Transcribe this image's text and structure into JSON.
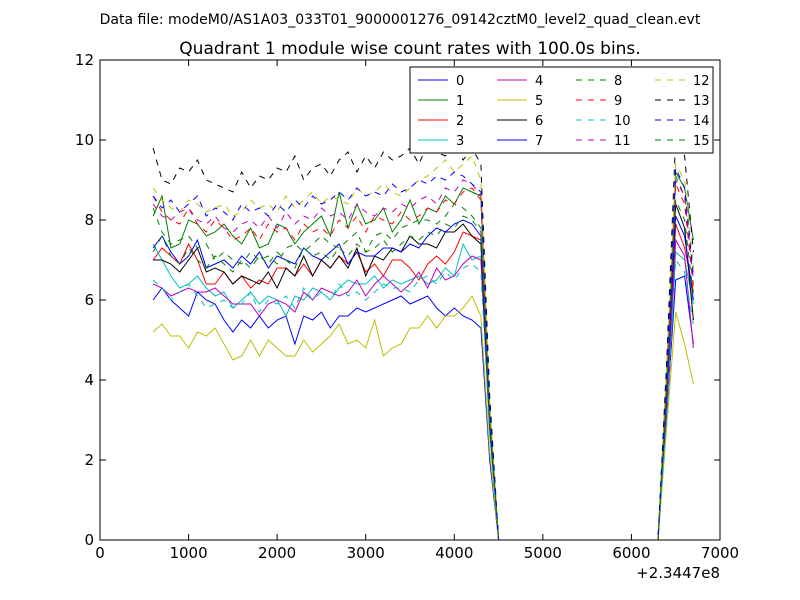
{
  "figure": {
    "suptitle": "Data file: modeM0/AS1A03_033T01_9000001276_09142cztM0_level2_quad_clean.evt"
  },
  "chart_data": {
    "type": "line",
    "title": "Quadrant 1 module wise count rates with 100.0s bins.",
    "xlabel": "",
    "ylabel": "",
    "x_offset_label": "+2.3447e8",
    "xlim": [
      0,
      7000
    ],
    "ylim": [
      0,
      12
    ],
    "xticks": [
      0,
      1000,
      2000,
      3000,
      4000,
      5000,
      6000,
      7000
    ],
    "yticks": [
      0,
      2,
      4,
      6,
      8,
      10,
      12
    ],
    "grid": false,
    "legend": {
      "placement": "top-right",
      "columns": 4
    },
    "x": [
      600,
      700,
      800,
      900,
      1000,
      1100,
      1200,
      1300,
      1400,
      1500,
      1600,
      1700,
      1800,
      1900,
      2000,
      2100,
      2200,
      2300,
      2400,
      2500,
      2600,
      2700,
      2800,
      2900,
      3000,
      3100,
      3200,
      3300,
      3400,
      3500,
      3600,
      3700,
      3800,
      3900,
      4000,
      4100,
      4200,
      4300,
      4400,
      4500,
      4600,
      4700,
      4800,
      4900,
      5000,
      5100,
      5200,
      5300,
      5400,
      5500,
      5600,
      5700,
      5800,
      5900,
      6000,
      6100,
      6200,
      6300,
      6400,
      6500,
      6600,
      6700
    ],
    "series": [
      {
        "name": "0",
        "color": "#0000ff",
        "dash": "solid",
        "values": [
          6.0,
          6.3,
          6.0,
          5.8,
          5.6,
          6.2,
          6.0,
          5.9,
          5.5,
          5.2,
          5.5,
          5.3,
          5.6,
          5.3,
          5.5,
          5.6,
          4.9,
          5.6,
          5.5,
          5.7,
          5.3,
          5.6,
          5.6,
          5.8,
          5.7,
          5.8,
          5.9,
          6.0,
          6.1,
          5.9,
          6.0,
          6.1,
          5.8,
          5.6,
          5.8,
          5.6,
          5.5,
          5.3,
          2.0,
          0,
          0,
          0,
          0,
          0,
          0,
          0,
          0,
          0,
          0,
          0,
          0,
          0,
          0,
          0,
          0,
          0,
          0,
          0,
          3.2,
          6.5,
          6.6,
          4.9
        ]
      },
      {
        "name": "1",
        "color": "#008000",
        "dash": "solid",
        "values": [
          8.1,
          8.6,
          7.3,
          7.4,
          8.0,
          7.9,
          7.6,
          7.7,
          7.9,
          7.6,
          7.4,
          7.8,
          7.3,
          7.4,
          7.9,
          7.8,
          7.4,
          7.7,
          7.9,
          8.1,
          7.6,
          8.7,
          7.8,
          8.4,
          7.9,
          8.0,
          8.3,
          7.7,
          8.0,
          8.5,
          7.9,
          8.3,
          8.2,
          8.6,
          8.4,
          8.8,
          8.7,
          8.6,
          3.3,
          0,
          0,
          0,
          0,
          0,
          0,
          0,
          0,
          0,
          0,
          0,
          0,
          0,
          0,
          0,
          0,
          0,
          0,
          0,
          4.3,
          9.2,
          8.8,
          7.5
        ]
      },
      {
        "name": "2",
        "color": "#ff0000",
        "dash": "solid",
        "values": [
          7.0,
          7.3,
          7.1,
          6.9,
          7.4,
          7.0,
          6.4,
          6.4,
          6.7,
          6.4,
          6.6,
          6.3,
          6.5,
          6.4,
          6.8,
          6.8,
          6.6,
          6.9,
          6.6,
          7.0,
          6.8,
          7.1,
          6.9,
          7.2,
          6.7,
          6.9,
          6.6,
          7.0,
          7.0,
          6.8,
          6.5,
          6.9,
          7.1,
          6.9,
          7.2,
          7.7,
          7.6,
          7.5,
          2.9,
          0,
          0,
          0,
          0,
          0,
          0,
          0,
          0,
          0,
          0,
          0,
          0,
          0,
          0,
          0,
          0,
          0,
          0,
          0,
          3.6,
          7.9,
          7.3,
          6.2
        ]
      },
      {
        "name": "3",
        "color": "#00bfbf",
        "dash": "solid",
        "values": [
          7.4,
          7.0,
          6.6,
          6.3,
          6.4,
          6.6,
          6.3,
          6.1,
          6.2,
          5.8,
          6.0,
          6.2,
          5.9,
          6.1,
          6.0,
          5.6,
          6.1,
          6.0,
          6.3,
          6.2,
          6.0,
          6.3,
          6.5,
          6.4,
          6.4,
          6.6,
          6.3,
          6.5,
          6.4,
          6.5,
          6.6,
          6.4,
          6.5,
          6.8,
          6.6,
          7.4,
          7.0,
          7.1,
          2.7,
          0,
          0,
          0,
          0,
          0,
          0,
          0,
          0,
          0,
          0,
          0,
          0,
          0,
          0,
          0,
          0,
          0,
          0,
          0,
          3.3,
          7.2,
          7.0,
          5.9
        ]
      },
      {
        "name": "4",
        "color": "#bf00bf",
        "dash": "solid",
        "values": [
          6.4,
          6.3,
          6.1,
          6.2,
          6.3,
          6.2,
          6.2,
          6.3,
          6.1,
          5.9,
          5.9,
          5.9,
          5.6,
          5.9,
          6.0,
          5.9,
          5.7,
          6.2,
          6.0,
          6.3,
          6.2,
          6.1,
          6.2,
          6.5,
          6.1,
          6.4,
          6.6,
          6.4,
          6.2,
          6.4,
          6.7,
          6.3,
          6.8,
          6.5,
          6.6,
          6.9,
          7.1,
          7.0,
          2.8,
          0,
          0,
          0,
          0,
          0,
          0,
          0,
          0,
          0,
          0,
          0,
          0,
          0,
          0,
          0,
          0,
          0,
          0,
          0,
          3.4,
          7.5,
          7.1,
          4.8
        ]
      },
      {
        "name": "5",
        "color": "#bfbf00",
        "dash": "solid",
        "values": [
          5.2,
          5.4,
          5.1,
          5.1,
          4.8,
          5.2,
          5.1,
          5.3,
          4.9,
          4.5,
          4.6,
          5.0,
          4.6,
          5.0,
          4.8,
          4.6,
          4.6,
          5.0,
          4.7,
          4.9,
          5.1,
          5.4,
          4.9,
          5.0,
          4.8,
          5.5,
          4.6,
          4.8,
          4.9,
          5.3,
          5.3,
          5.6,
          5.3,
          5.6,
          5.6,
          5.8,
          6.1,
          5.6,
          2.2,
          0,
          0,
          0,
          0,
          0,
          0,
          0,
          0,
          0,
          0,
          0,
          0,
          0,
          0,
          0,
          0,
          0,
          0,
          0,
          2.9,
          5.7,
          4.9,
          3.9
        ]
      },
      {
        "name": "6",
        "color": "#000000",
        "dash": "solid",
        "values": [
          7.0,
          7.0,
          6.9,
          6.7,
          7.0,
          7.3,
          6.7,
          6.8,
          6.7,
          6.4,
          6.6,
          6.5,
          6.4,
          6.7,
          6.3,
          6.8,
          6.6,
          7.1,
          6.6,
          7.0,
          6.8,
          7.1,
          6.8,
          7.3,
          6.6,
          7.1,
          7.0,
          7.3,
          7.2,
          7.6,
          7.4,
          7.4,
          7.3,
          7.7,
          7.7,
          7.9,
          7.6,
          7.4,
          2.9,
          0,
          0,
          0,
          0,
          0,
          0,
          0,
          0,
          0,
          0,
          0,
          0,
          0,
          0,
          0,
          0,
          0,
          0,
          0,
          3.8,
          8.4,
          7.8,
          5.5
        ]
      },
      {
        "name": "7",
        "color": "#0000ff",
        "dash": "solid",
        "values": [
          7.3,
          7.6,
          7.2,
          6.9,
          7.1,
          7.5,
          6.8,
          6.9,
          7.0,
          6.8,
          7.1,
          6.9,
          7.2,
          6.8,
          7.1,
          7.0,
          6.9,
          7.3,
          7.1,
          7.0,
          7.2,
          7.4,
          6.9,
          7.2,
          7.1,
          7.1,
          7.3,
          7.3,
          7.2,
          7.4,
          7.3,
          7.6,
          7.8,
          7.7,
          7.9,
          8.0,
          7.9,
          7.6,
          3.0,
          0,
          0,
          0,
          0,
          0,
          0,
          0,
          0,
          0,
          0,
          0,
          0,
          0,
          0,
          0,
          0,
          0,
          0,
          0,
          3.9,
          8.1,
          7.6,
          6.0
        ]
      },
      {
        "name": "8",
        "color": "#008000",
        "dash": "dashed",
        "values": [
          8.3,
          7.7,
          7.4,
          7.5,
          7.6,
          7.3,
          7.4,
          7.0,
          7.2,
          7.0,
          6.9,
          7.2,
          7.0,
          7.1,
          6.9,
          7.3,
          7.4,
          7.2,
          7.4,
          7.6,
          7.4,
          7.3,
          7.5,
          7.7,
          7.2,
          7.6,
          7.7,
          7.5,
          7.8,
          7.9,
          8.0,
          8.0,
          7.9,
          8.1,
          8.4,
          8.3,
          8.1,
          7.8,
          3.1,
          0,
          0,
          0,
          0,
          0,
          0,
          0,
          0,
          0,
          0,
          0,
          0,
          0,
          0,
          0,
          0,
          0,
          0,
          0,
          4.0,
          9.1,
          8.6,
          6.4
        ]
      },
      {
        "name": "9",
        "color": "#ff0000",
        "dash": "dashed",
        "values": [
          8.6,
          8.2,
          8.0,
          7.9,
          8.3,
          7.9,
          7.7,
          8.0,
          7.8,
          7.5,
          7.6,
          7.8,
          7.5,
          7.9,
          7.7,
          7.8,
          7.5,
          7.9,
          7.7,
          7.8,
          7.6,
          8.0,
          7.8,
          8.1,
          7.7,
          8.1,
          8.0,
          7.9,
          8.2,
          8.0,
          8.1,
          8.3,
          8.2,
          8.5,
          8.4,
          8.7,
          8.8,
          8.5,
          3.2,
          0,
          0,
          0,
          0,
          0,
          0,
          0,
          0,
          0,
          0,
          0,
          0,
          0,
          0,
          0,
          0,
          0,
          0,
          0,
          4.2,
          8.9,
          8.4,
          6.3
        ]
      },
      {
        "name": "10",
        "color": "#00bfbf",
        "dash": "dashed",
        "values": [
          6.5,
          6.3,
          6.0,
          6.2,
          6.4,
          6.1,
          5.8,
          5.9,
          6.0,
          5.8,
          5.9,
          6.2,
          5.7,
          6.0,
          5.9,
          6.1,
          5.8,
          6.3,
          6.0,
          6.2,
          6.0,
          6.4,
          6.1,
          6.2,
          6.0,
          6.2,
          6.4,
          6.3,
          6.3,
          6.2,
          6.5,
          6.6,
          6.4,
          6.7,
          6.5,
          6.8,
          6.9,
          6.7,
          2.6,
          0,
          0,
          0,
          0,
          0,
          0,
          0,
          0,
          0,
          0,
          0,
          0,
          0,
          0,
          0,
          0,
          0,
          0,
          0,
          3.1,
          7.0,
          6.7,
          5.4
        ]
      },
      {
        "name": "11",
        "color": "#bf00bf",
        "dash": "dashed",
        "values": [
          8.4,
          8.1,
          8.0,
          8.2,
          8.3,
          8.0,
          7.9,
          8.1,
          7.8,
          7.7,
          7.9,
          8.0,
          7.8,
          8.1,
          7.8,
          8.2,
          7.9,
          8.1,
          8.0,
          8.3,
          8.1,
          8.2,
          8.0,
          8.4,
          8.2,
          8.1,
          8.3,
          8.2,
          8.4,
          8.3,
          8.5,
          8.6,
          8.4,
          8.8,
          8.7,
          9.0,
          8.9,
          8.6,
          3.3,
          0,
          0,
          0,
          0,
          0,
          0,
          0,
          0,
          0,
          0,
          0,
          0,
          0,
          0,
          0,
          0,
          0,
          0,
          0,
          4.3,
          9.0,
          8.6,
          6.5
        ]
      },
      {
        "name": "12",
        "color": "#bfbf00",
        "dash": "dashed",
        "values": [
          8.8,
          8.5,
          8.3,
          8.2,
          8.5,
          8.4,
          8.2,
          8.3,
          8.4,
          8.1,
          8.2,
          8.5,
          8.3,
          8.4,
          8.2,
          8.6,
          8.3,
          8.5,
          8.7,
          8.4,
          8.6,
          8.5,
          8.4,
          8.8,
          8.6,
          8.7,
          8.9,
          8.7,
          8.6,
          8.8,
          9.0,
          9.1,
          9.3,
          9.5,
          9.2,
          9.4,
          9.6,
          9.0,
          3.4,
          0,
          0,
          0,
          0,
          0,
          0,
          0,
          0,
          0,
          0,
          0,
          0,
          0,
          0,
          0,
          0,
          0,
          0,
          0,
          4.4,
          9.4,
          9.0,
          6.8
        ]
      },
      {
        "name": "13",
        "color": "#000000",
        "dash": "dashed",
        "values": [
          9.8,
          9.0,
          8.9,
          9.3,
          9.2,
          9.5,
          9.0,
          8.9,
          8.8,
          8.7,
          9.2,
          8.8,
          9.1,
          9.0,
          9.3,
          9.2,
          9.6,
          9.0,
          9.3,
          9.4,
          9.1,
          9.5,
          9.7,
          9.2,
          9.6,
          9.3,
          9.7,
          9.5,
          9.6,
          9.8,
          9.4,
          9.9,
          9.7,
          9.6,
          9.9,
          9.5,
          9.8,
          9.4,
          3.6,
          0,
          0,
          0,
          0,
          0,
          0,
          0,
          0,
          0,
          0,
          0,
          0,
          0,
          0,
          0,
          0,
          0,
          0,
          0,
          4.6,
          10.1,
          9.6,
          7.2
        ]
      },
      {
        "name": "14",
        "color": "#0000ff",
        "dash": "dashed",
        "values": [
          8.6,
          8.3,
          8.5,
          8.2,
          8.4,
          8.6,
          8.1,
          8.3,
          8.2,
          8.0,
          8.4,
          8.2,
          8.3,
          8.1,
          8.4,
          8.2,
          8.5,
          8.3,
          8.6,
          8.4,
          8.5,
          8.7,
          8.5,
          8.8,
          8.6,
          8.7,
          8.6,
          8.9,
          8.7,
          8.8,
          9.0,
          8.9,
          9.1,
          9.0,
          9.2,
          9.1,
          8.9,
          8.7,
          3.3,
          0,
          0,
          0,
          0,
          0,
          0,
          0,
          0,
          0,
          0,
          0,
          0,
          0,
          0,
          0,
          0,
          0,
          0,
          0,
          4.3,
          9.3,
          8.8,
          6.6
        ]
      },
      {
        "name": "15",
        "color": "#008000",
        "dash": "dashed",
        "values": [
          7.2,
          7.6,
          7.1,
          6.9,
          7.3,
          7.0,
          6.8,
          7.1,
          6.9,
          6.7,
          7.0,
          6.8,
          7.1,
          6.9,
          7.2,
          7.0,
          6.8,
          7.3,
          7.1,
          7.2,
          7.0,
          7.3,
          7.1,
          7.4,
          7.2,
          7.3,
          7.5,
          7.2,
          7.4,
          7.6,
          7.5,
          7.7,
          7.6,
          7.9,
          7.8,
          8.1,
          8.0,
          7.7,
          3.0,
          0,
          0,
          0,
          0,
          0,
          0,
          0,
          0,
          0,
          0,
          0,
          0,
          0,
          0,
          0,
          0,
          0,
          0,
          0,
          3.9,
          8.5,
          8.0,
          6.1
        ]
      }
    ]
  }
}
